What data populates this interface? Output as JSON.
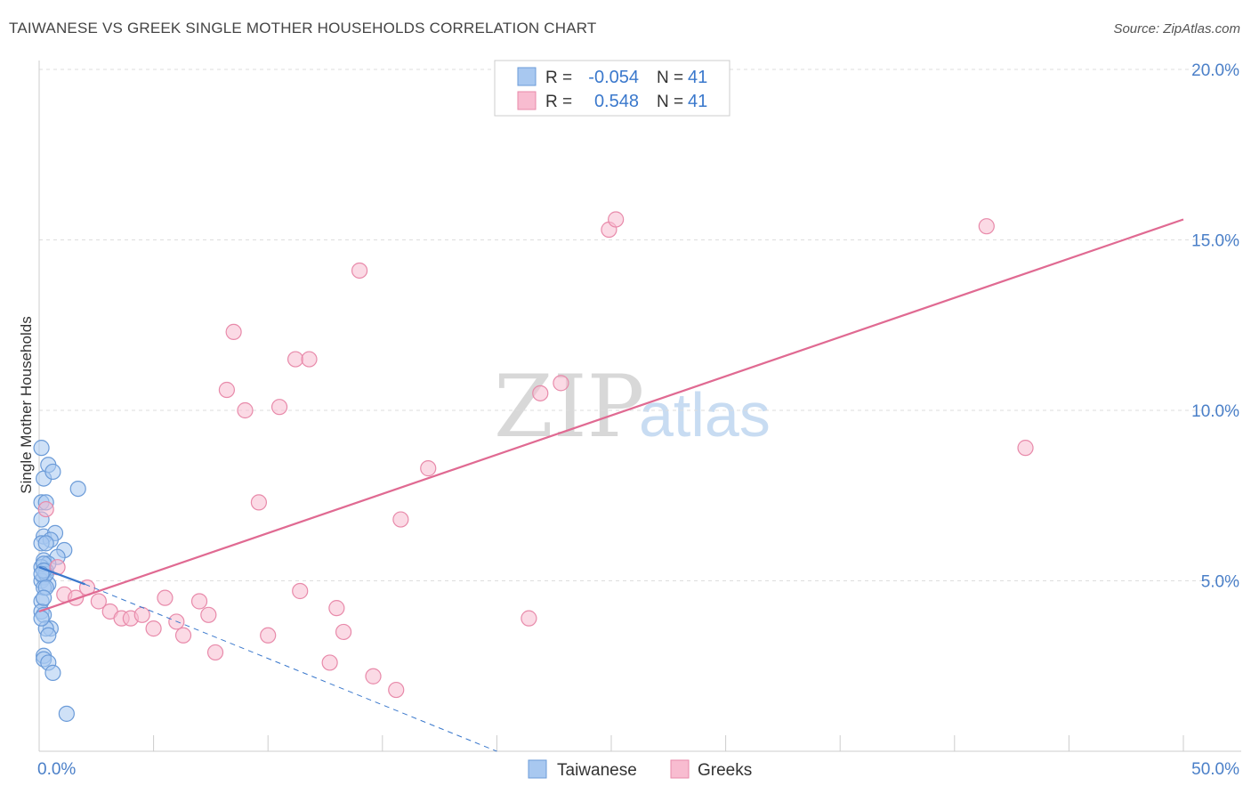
{
  "header": {
    "title": "TAIWANESE VS GREEK SINGLE MOTHER HOUSEHOLDS CORRELATION CHART",
    "source": "Source: ZipAtlas.com"
  },
  "chart_data": {
    "type": "scatter",
    "ylabel": "Single Mother Households",
    "xlim": [
      0,
      50
    ],
    "ylim": [
      0,
      20
    ],
    "x_tick_labels": [
      {
        "value": 0,
        "label": "0.0%"
      },
      {
        "value": 50,
        "label": "50.0%"
      }
    ],
    "y_tick_labels": [
      {
        "value": 5,
        "label": "5.0%"
      },
      {
        "value": 10,
        "label": "10.0%"
      },
      {
        "value": 15,
        "label": "15.0%"
      },
      {
        "value": 20,
        "label": "20.0%"
      }
    ],
    "y_gridlines": [
      5,
      10,
      15,
      20
    ],
    "watermark": {
      "zip": "ZIP",
      "atlas": "atlas"
    },
    "legend_stats": [
      {
        "r_label": "R =",
        "r_value": "-0.054",
        "n_label": "N =",
        "n_value": "41",
        "color": "#a8c8f0",
        "stroke": "#6b9bd8"
      },
      {
        "r_label": "R =",
        "r_value": "0.548",
        "n_label": "N =",
        "n_value": "41",
        "color": "#f8bcd0",
        "stroke": "#e88aaa"
      }
    ],
    "series": [
      {
        "name": "Taiwanese",
        "color": "#a8c8f0",
        "stroke": "#6b9bd8",
        "trend_color": "#3a78cc",
        "trend": {
          "x0": 0,
          "y0": 5.4,
          "x1": 2.0,
          "y1": 4.9
        },
        "trend_ext": {
          "x0": 2.0,
          "y0": 4.9,
          "x1": 20.0,
          "y1": 0.0
        },
        "points": [
          [
            0.1,
            8.9
          ],
          [
            0.2,
            8.0
          ],
          [
            0.4,
            8.4
          ],
          [
            0.6,
            8.2
          ],
          [
            1.7,
            7.7
          ],
          [
            0.1,
            7.3
          ],
          [
            0.3,
            7.3
          ],
          [
            0.1,
            6.8
          ],
          [
            0.2,
            6.3
          ],
          [
            0.7,
            6.4
          ],
          [
            0.5,
            6.2
          ],
          [
            0.1,
            6.1
          ],
          [
            1.1,
            5.9
          ],
          [
            0.8,
            5.7
          ],
          [
            0.2,
            5.6
          ],
          [
            0.4,
            5.5
          ],
          [
            0.1,
            5.4
          ],
          [
            0.3,
            5.3
          ],
          [
            0.2,
            5.1
          ],
          [
            0.1,
            5.0
          ],
          [
            0.4,
            4.9
          ],
          [
            0.2,
            4.8
          ],
          [
            0.3,
            5.2
          ],
          [
            0.1,
            4.4
          ],
          [
            0.1,
            4.1
          ],
          [
            0.2,
            4.0
          ],
          [
            0.5,
            3.6
          ],
          [
            0.3,
            3.6
          ],
          [
            0.4,
            3.4
          ],
          [
            0.2,
            2.8
          ],
          [
            0.2,
            2.7
          ],
          [
            0.4,
            2.6
          ],
          [
            0.6,
            2.3
          ],
          [
            1.2,
            1.1
          ],
          [
            0.2,
            5.5
          ],
          [
            0.3,
            6.1
          ],
          [
            0.2,
            5.3
          ],
          [
            0.1,
            5.2
          ],
          [
            0.3,
            4.8
          ],
          [
            0.2,
            4.5
          ],
          [
            0.1,
            3.9
          ]
        ]
      },
      {
        "name": "Greeks",
        "color": "#f8bcd0",
        "stroke": "#e88aaa",
        "trend_color": "#e06a92",
        "trend": {
          "x0": 0,
          "y0": 4.1,
          "x1": 50,
          "y1": 15.6
        },
        "points": [
          [
            0.3,
            7.1
          ],
          [
            0.8,
            5.4
          ],
          [
            1.1,
            4.6
          ],
          [
            1.6,
            4.5
          ],
          [
            2.1,
            4.8
          ],
          [
            2.6,
            4.4
          ],
          [
            3.1,
            4.1
          ],
          [
            3.6,
            3.9
          ],
          [
            4.0,
            3.9
          ],
          [
            4.5,
            4.0
          ],
          [
            5.0,
            3.6
          ],
          [
            5.5,
            4.5
          ],
          [
            6.0,
            3.8
          ],
          [
            6.3,
            3.4
          ],
          [
            7.0,
            4.4
          ],
          [
            7.4,
            4.0
          ],
          [
            7.7,
            2.9
          ],
          [
            8.2,
            10.6
          ],
          [
            8.5,
            12.3
          ],
          [
            9.0,
            10.0
          ],
          [
            9.6,
            7.3
          ],
          [
            10.0,
            3.4
          ],
          [
            10.5,
            10.1
          ],
          [
            11.2,
            11.5
          ],
          [
            11.4,
            4.7
          ],
          [
            11.8,
            11.5
          ],
          [
            12.7,
            2.6
          ],
          [
            13.0,
            4.2
          ],
          [
            13.3,
            3.5
          ],
          [
            14.0,
            14.1
          ],
          [
            14.6,
            2.2
          ],
          [
            15.6,
            1.8
          ],
          [
            15.8,
            6.8
          ],
          [
            17.0,
            8.3
          ],
          [
            21.4,
            3.9
          ],
          [
            21.9,
            10.5
          ],
          [
            22.8,
            10.8
          ],
          [
            24.9,
            15.3
          ],
          [
            25.2,
            15.6
          ],
          [
            41.4,
            15.4
          ],
          [
            43.1,
            8.9
          ]
        ]
      }
    ]
  },
  "legend": {
    "items": [
      {
        "label": "Taiwanese",
        "color": "#a8c8f0",
        "stroke": "#6b9bd8"
      },
      {
        "label": "Greeks",
        "color": "#f8bcd0",
        "stroke": "#e88aaa"
      }
    ]
  }
}
